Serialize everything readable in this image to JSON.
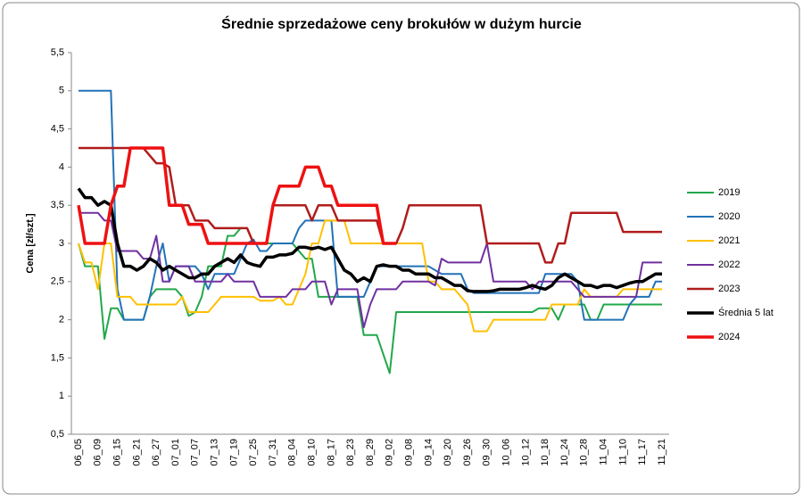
{
  "chart_data": {
    "type": "line",
    "title": "Średnie sprzedażowe ceny brokułów w dużym hurcie",
    "y_label": "Cena [zł/szt.]",
    "legend": "right",
    "categories": [
      "06_05",
      null,
      null,
      "06_09",
      null,
      null,
      "06_15",
      null,
      null,
      "06_21",
      null,
      null,
      "06_27",
      null,
      null,
      "07_01",
      null,
      null,
      "07_07",
      null,
      null,
      "07_13",
      null,
      null,
      "07_19",
      null,
      null,
      "07_25",
      null,
      null,
      "07_31",
      null,
      null,
      "08_04",
      null,
      null,
      "08_10",
      null,
      null,
      "08_17",
      null,
      null,
      "08_23",
      null,
      null,
      "08_29",
      null,
      null,
      "09_02",
      null,
      null,
      "09_08",
      null,
      null,
      "09_14",
      null,
      null,
      "09_20",
      null,
      null,
      "09_26",
      null,
      null,
      "09_30",
      null,
      null,
      "10_06",
      null,
      null,
      "10_12",
      null,
      null,
      "10_18",
      null,
      null,
      "10_24",
      null,
      null,
      "10_28",
      null,
      null,
      "11_04",
      null,
      null,
      "11_10",
      null,
      null,
      "11_17",
      null,
      null,
      "11_21"
    ],
    "ylim": [
      0.5,
      5.5
    ],
    "yticks": [
      {
        "value": 0.5,
        "label": "0,5"
      },
      1,
      {
        "value": 1.5,
        "label": "1,5"
      },
      2,
      {
        "value": 2.5,
        "label": "2,5"
      },
      3,
      {
        "value": 3.5,
        "label": "3,5"
      },
      4,
      {
        "value": 4.5,
        "label": "4,5"
      },
      5,
      {
        "value": 5.5,
        "label": "5,5"
      }
    ],
    "series": [
      {
        "name": "2019",
        "color": "#22a84a",
        "width": 2,
        "values": [
          3.0,
          2.7,
          2.7,
          2.7,
          1.75,
          2.15,
          2.15,
          2.0,
          2.0,
          2.0,
          2.0,
          2.3,
          2.4,
          2.4,
          2.4,
          2.4,
          2.3,
          2.05,
          2.1,
          2.3,
          2.7,
          2.7,
          2.7,
          3.1,
          3.1,
          3.2,
          3.2,
          3.0,
          3.0,
          3.0,
          3.0,
          3.0,
          3.0,
          3.0,
          2.9,
          2.8,
          2.8,
          2.3,
          2.3,
          2.3,
          2.3,
          2.3,
          2.3,
          2.3,
          1.8,
          1.8,
          1.8,
          1.55,
          1.3,
          2.1,
          2.1,
          2.1,
          2.1,
          2.1,
          2.1,
          2.1,
          2.1,
          2.1,
          2.1,
          2.1,
          2.1,
          2.1,
          2.1,
          2.1,
          2.1,
          2.1,
          2.1,
          2.1,
          2.1,
          2.1,
          2.1,
          2.15,
          2.15,
          2.15,
          2.0,
          2.2,
          2.2,
          2.2,
          2.2,
          2.0,
          2.0,
          2.2,
          2.2,
          2.2,
          2.2,
          2.2,
          2.2,
          2.2,
          2.2,
          2.2,
          2.2
        ]
      },
      {
        "name": "2020",
        "color": "#2272b8",
        "width": 2,
        "values": [
          5,
          5,
          5,
          5,
          5,
          5,
          2.4,
          2.0,
          2.0,
          2.0,
          2.0,
          2.3,
          2.7,
          3.0,
          2.5,
          2.7,
          2.7,
          2.7,
          2.7,
          2.6,
          2.4,
          2.6,
          2.6,
          2.6,
          2.6,
          2.8,
          3.0,
          3.05,
          2.9,
          2.9,
          3.0,
          3.0,
          3.0,
          3.0,
          3.2,
          3.3,
          3.3,
          3.3,
          3.3,
          3.3,
          2.3,
          2.3,
          2.3,
          2.3,
          2.3,
          2.5,
          2.7,
          2.7,
          2.7,
          2.7,
          2.7,
          2.7,
          2.7,
          2.7,
          2.7,
          2.65,
          2.6,
          2.6,
          2.6,
          2.6,
          2.4,
          2.35,
          2.35,
          2.35,
          2.35,
          2.35,
          2.35,
          2.35,
          2.35,
          2.35,
          2.35,
          2.35,
          2.6,
          2.6,
          2.6,
          2.6,
          2.6,
          2.5,
          2.0,
          2.0,
          2.0,
          2.0,
          2.0,
          2.0,
          2.0,
          2.2,
          2.3,
          2.3,
          2.3,
          2.5,
          2.5
        ]
      },
      {
        "name": "2021",
        "color": "#ffc000",
        "width": 2,
        "values": [
          3.0,
          2.75,
          2.75,
          2.4,
          3.0,
          3.0,
          2.3,
          2.3,
          2.3,
          2.2,
          2.2,
          2.2,
          2.2,
          2.2,
          2.2,
          2.2,
          2.3,
          2.1,
          2.1,
          2.1,
          2.1,
          2.2,
          2.3,
          2.3,
          2.3,
          2.3,
          2.3,
          2.3,
          2.25,
          2.25,
          2.25,
          2.3,
          2.2,
          2.2,
          2.4,
          2.6,
          3.0,
          3.0,
          3.3,
          3.3,
          3.3,
          3.3,
          3.0,
          3.0,
          3.0,
          3.0,
          3.0,
          3.0,
          3.0,
          3.0,
          3.0,
          3.0,
          3.0,
          3.0,
          2.5,
          2.5,
          2.4,
          2.4,
          2.4,
          2.3,
          2.2,
          1.85,
          1.85,
          1.85,
          2.0,
          2.0,
          2.0,
          2.0,
          2.0,
          2.0,
          2.0,
          2.0,
          2.0,
          2.2,
          2.2,
          2.2,
          2.2,
          2.2,
          2.4,
          2.3,
          2.3,
          2.3,
          2.3,
          2.3,
          2.4,
          2.4,
          2.4,
          2.4,
          2.4,
          2.4,
          2.4
        ]
      },
      {
        "name": "2022",
        "color": "#7030a0",
        "width": 2,
        "values": [
          3.4,
          3.4,
          3.4,
          3.4,
          3.3,
          3.3,
          2.9,
          2.9,
          2.9,
          2.9,
          2.8,
          2.8,
          3.1,
          2.5,
          2.5,
          2.7,
          2.7,
          2.7,
          2.5,
          2.5,
          2.5,
          2.5,
          2.5,
          2.6,
          2.5,
          2.5,
          2.5,
          2.5,
          2.3,
          2.3,
          2.3,
          2.3,
          2.3,
          2.4,
          2.4,
          2.4,
          2.5,
          2.5,
          2.5,
          2.2,
          2.4,
          2.4,
          2.4,
          2.4,
          1.9,
          2.2,
          2.4,
          2.4,
          2.4,
          2.4,
          2.5,
          2.5,
          2.5,
          2.5,
          2.5,
          2.45,
          2.8,
          2.75,
          2.75,
          2.75,
          2.75,
          2.75,
          2.75,
          3.0,
          2.5,
          2.5,
          2.5,
          2.5,
          2.5,
          2.5,
          2.4,
          2.5,
          2.5,
          2.5,
          2.5,
          2.5,
          2.5,
          2.4,
          2.3,
          2.3,
          2.3,
          2.3,
          2.3,
          2.3,
          2.3,
          2.3,
          2.3,
          2.75,
          2.75,
          2.75,
          2.75
        ]
      },
      {
        "name": "2023",
        "color": "#b01c1c",
        "width": 2.5,
        "values": [
          4.25,
          4.25,
          4.25,
          4.25,
          4.25,
          4.25,
          4.25,
          4.25,
          4.25,
          4.25,
          4.25,
          4.15,
          4.05,
          4.05,
          4.0,
          3.5,
          3.5,
          3.5,
          3.3,
          3.3,
          3.3,
          3.2,
          3.2,
          3.2,
          3.2,
          3.2,
          3.2,
          3.0,
          3.0,
          3.0,
          3.5,
          3.5,
          3.5,
          3.5,
          3.5,
          3.5,
          3.3,
          3.5,
          3.5,
          3.5,
          3.3,
          3.3,
          3.3,
          3.3,
          3.3,
          3.3,
          3.3,
          3.0,
          3.0,
          3.0,
          3.2,
          3.5,
          3.5,
          3.5,
          3.5,
          3.5,
          3.5,
          3.5,
          3.5,
          3.5,
          3.5,
          3.5,
          3.5,
          3.0,
          3.0,
          3.0,
          3.0,
          3.0,
          3.0,
          3.0,
          3.0,
          3.0,
          2.75,
          2.75,
          3.0,
          3.0,
          3.4,
          3.4,
          3.4,
          3.4,
          3.4,
          3.4,
          3.4,
          3.4,
          3.15,
          3.15,
          3.15,
          3.15,
          3.15,
          3.15,
          3.15
        ]
      },
      {
        "name": "Średnia 5 lat",
        "color": "#000000",
        "width": 3.5,
        "values": [
          3.72,
          3.6,
          3.6,
          3.5,
          3.55,
          3.5,
          3.0,
          2.7,
          2.7,
          2.65,
          2.7,
          2.8,
          2.75,
          2.65,
          2.7,
          2.65,
          2.6,
          2.55,
          2.55,
          2.6,
          2.6,
          2.7,
          2.75,
          2.8,
          2.75,
          2.85,
          2.75,
          2.72,
          2.7,
          2.82,
          2.82,
          2.85,
          2.85,
          2.87,
          2.95,
          2.95,
          2.93,
          2.95,
          2.92,
          2.95,
          2.8,
          2.65,
          2.6,
          2.5,
          2.55,
          2.5,
          2.7,
          2.72,
          2.7,
          2.7,
          2.65,
          2.65,
          2.6,
          2.6,
          2.6,
          2.55,
          2.55,
          2.5,
          2.45,
          2.45,
          2.38,
          2.37,
          2.37,
          2.37,
          2.38,
          2.4,
          2.4,
          2.4,
          2.4,
          2.42,
          2.45,
          2.42,
          2.4,
          2.45,
          2.55,
          2.6,
          2.55,
          2.5,
          2.45,
          2.45,
          2.42,
          2.45,
          2.45,
          2.42,
          2.45,
          2.48,
          2.5,
          2.5,
          2.55,
          2.6,
          2.6
        ]
      },
      {
        "name": "2024",
        "color": "#ee1111",
        "width": 3.5,
        "values": [
          3.5,
          3.0,
          3.0,
          3.0,
          3.0,
          3.5,
          3.75,
          3.75,
          4.25,
          4.25,
          4.25,
          4.25,
          4.25,
          4.25,
          3.5,
          3.5,
          3.5,
          3.25,
          3.25,
          3.25,
          3.0,
          3.0,
          3.0,
          3.0,
          3.0,
          3.0,
          3.0,
          3.0,
          3.0,
          3.0,
          3.5,
          3.75,
          3.75,
          3.75,
          3.75,
          4.0,
          4.0,
          4.0,
          3.75,
          3.75,
          3.5,
          3.5,
          3.5,
          3.5,
          3.5,
          3.5,
          3.5,
          3.0,
          3.0,
          3.0,
          null,
          null,
          null,
          null,
          null,
          null,
          null,
          null,
          null,
          null,
          null,
          null,
          null,
          null,
          null,
          null,
          null,
          null,
          null,
          null,
          null,
          null,
          null,
          null,
          null,
          null,
          null,
          null,
          null,
          null,
          null,
          null,
          null,
          null,
          null,
          null,
          null,
          null,
          null,
          null,
          null
        ]
      }
    ]
  }
}
